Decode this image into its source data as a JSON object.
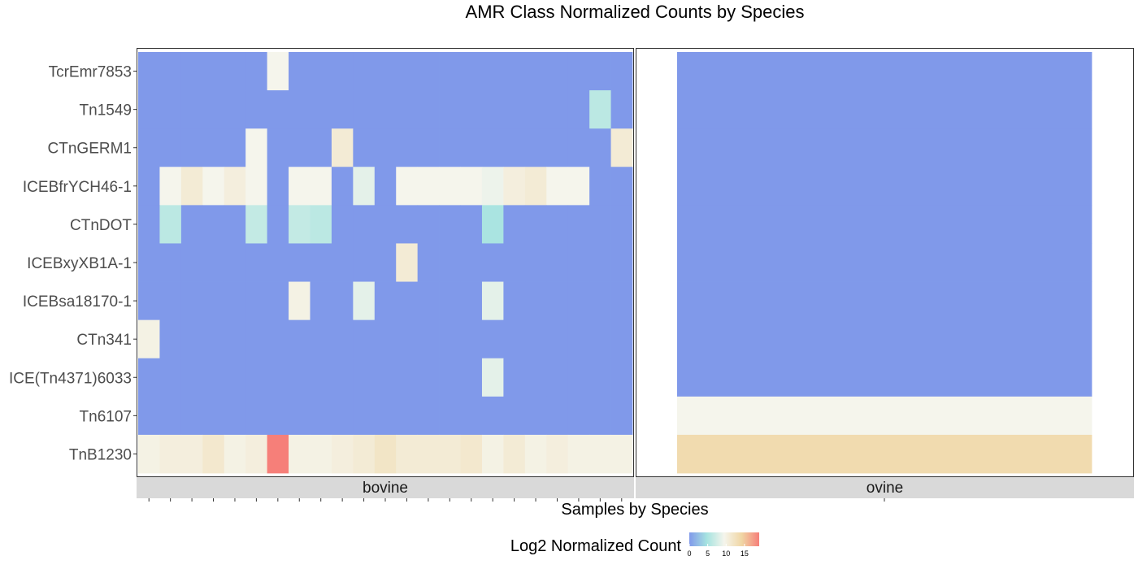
{
  "chart_data": {
    "type": "heatmap",
    "title": "AMR Class Normalized Counts by Species",
    "xlabel": "Samples by Species",
    "legend": {
      "title": "Log2 Normalized Count",
      "ticks": [
        0,
        5,
        10,
        15
      ],
      "range": [
        0,
        19
      ],
      "colors": [
        "#8099ea",
        "#a6e3e0",
        "#f5f5ec",
        "#f0d6a4",
        "#f67f79"
      ],
      "stops": [
        0,
        0.25,
        0.5,
        0.75,
        1
      ],
      "position": "bottom"
    },
    "rows": [
      "TcrEmr7853",
      "Tn1549",
      "CTnGERM1",
      "ICEBfrYCH46-1",
      "CTnDOT",
      "ICEBxyXB1A-1",
      "ICEBsa18170-1",
      "CTn341",
      "ICE(Tn4371)6033",
      "Tn6107",
      "TnB1230"
    ],
    "facets": [
      {
        "name": "bovine",
        "n_samples": 23,
        "values": [
          [
            0,
            0,
            0,
            0,
            0,
            0,
            9.5,
            0,
            0,
            0,
            0,
            0,
            0,
            0,
            0,
            0,
            0,
            0,
            0,
            0,
            0,
            0,
            0
          ],
          [
            0,
            0,
            0,
            0,
            0,
            0,
            0,
            0,
            0,
            0,
            0,
            0,
            0,
            0,
            0,
            0,
            0,
            0,
            0,
            0,
            0,
            6,
            0
          ],
          [
            0,
            0,
            0,
            0,
            0,
            9.5,
            0,
            0,
            0,
            11,
            0,
            0,
            0,
            0,
            0,
            0,
            0,
            0,
            0,
            0,
            0,
            0,
            11
          ],
          [
            0,
            9.5,
            11,
            9.5,
            10.5,
            9.5,
            0,
            9.5,
            9.5,
            0,
            8.5,
            0,
            9.5,
            9.5,
            9.5,
            9.5,
            9,
            10.5,
            11,
            9.5,
            9.5,
            0,
            0
          ],
          [
            0,
            6,
            0,
            0,
            0,
            6.5,
            0,
            6.5,
            6,
            0,
            0,
            0,
            0,
            0,
            0,
            0,
            5,
            0,
            0,
            0,
            0,
            0,
            0
          ],
          [
            0,
            0,
            0,
            0,
            0,
            0,
            0,
            0,
            0,
            0,
            0,
            0,
            11,
            0,
            0,
            0,
            0,
            0,
            0,
            0,
            0,
            0,
            0
          ],
          [
            0,
            0,
            0,
            0,
            0,
            0,
            0,
            10,
            0,
            0,
            8.5,
            0,
            0,
            0,
            0,
            0,
            8.5,
            0,
            0,
            0,
            0,
            0,
            0
          ],
          [
            10,
            0,
            0,
            0,
            0,
            0,
            0,
            0,
            0,
            0,
            0,
            0,
            0,
            0,
            0,
            0,
            0,
            0,
            0,
            0,
            0,
            0,
            0
          ],
          [
            0,
            0,
            0,
            0,
            0,
            0,
            0,
            0,
            0,
            0,
            0,
            0,
            0,
            0,
            0,
            0,
            8.5,
            0,
            0,
            0,
            0,
            0,
            0
          ],
          [
            0,
            0,
            0,
            0,
            0,
            0,
            0,
            0,
            0,
            0,
            0,
            0,
            0,
            0,
            0,
            0,
            0,
            0,
            0,
            0,
            0,
            0,
            0
          ],
          [
            10,
            10.5,
            10.5,
            11.5,
            10,
            10.5,
            19,
            10,
            10,
            10.5,
            11,
            12,
            11,
            11,
            11,
            11.5,
            10,
            11,
            10,
            10.5,
            10,
            10,
            10
          ]
        ]
      },
      {
        "name": "ovine",
        "n_samples": 1,
        "values": [
          [
            0
          ],
          [
            0
          ],
          [
            0
          ],
          [
            0
          ],
          [
            0
          ],
          [
            0
          ],
          [
            0
          ],
          [
            0
          ],
          [
            0
          ],
          [
            9.5
          ],
          [
            13.5
          ]
        ]
      }
    ]
  }
}
